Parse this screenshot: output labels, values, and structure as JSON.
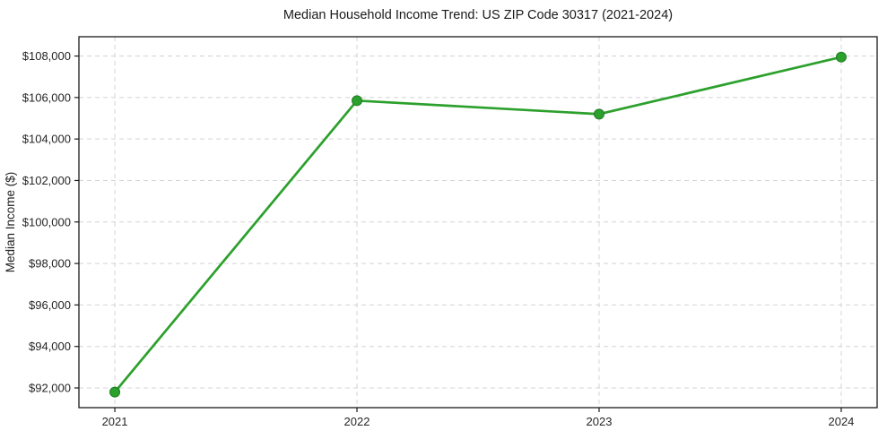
{
  "window": {
    "background_color": "#ffffff"
  },
  "chart_data": {
    "type": "line",
    "title": "Median Household Income Trend: US ZIP Code 30317 (2021-2024)",
    "xlabel": "",
    "ylabel": "Median Income ($)",
    "x_axis": {
      "ticks": [
        "2021",
        "2022",
        "2023",
        "2024"
      ]
    },
    "y_axis": {
      "label": "Median Income ($)",
      "ticks": [
        {
          "value": 92000,
          "label": "$92,000"
        },
        {
          "value": 94000,
          "label": "$94,000"
        },
        {
          "value": 96000,
          "label": "$96,000"
        },
        {
          "value": 98000,
          "label": "$98,000"
        },
        {
          "value": 100000,
          "label": "$100,000"
        },
        {
          "value": 102000,
          "label": "$102,000"
        },
        {
          "value": 104000,
          "label": "$104,000"
        },
        {
          "value": 106000,
          "label": "$106,000"
        },
        {
          "value": 108000,
          "label": "$108,000"
        }
      ]
    },
    "x": [
      2021,
      2022,
      2023,
      2024
    ],
    "series": [
      {
        "name": "Median Household Income",
        "values": [
          91800,
          105850,
          105200,
          107950
        ]
      }
    ],
    "ylim": [
      91050,
      108930
    ],
    "grid": true,
    "grid_style": "dashed",
    "legend": false,
    "marker": "circle",
    "colors": {
      "line": "#2ca02c",
      "marker_fill": "#2ca02c",
      "marker_edge": "#1e7d22",
      "grid": "#d4d4d4",
      "axis": "#1a1a1a",
      "text": "#262626",
      "background": "#ffffff"
    }
  }
}
